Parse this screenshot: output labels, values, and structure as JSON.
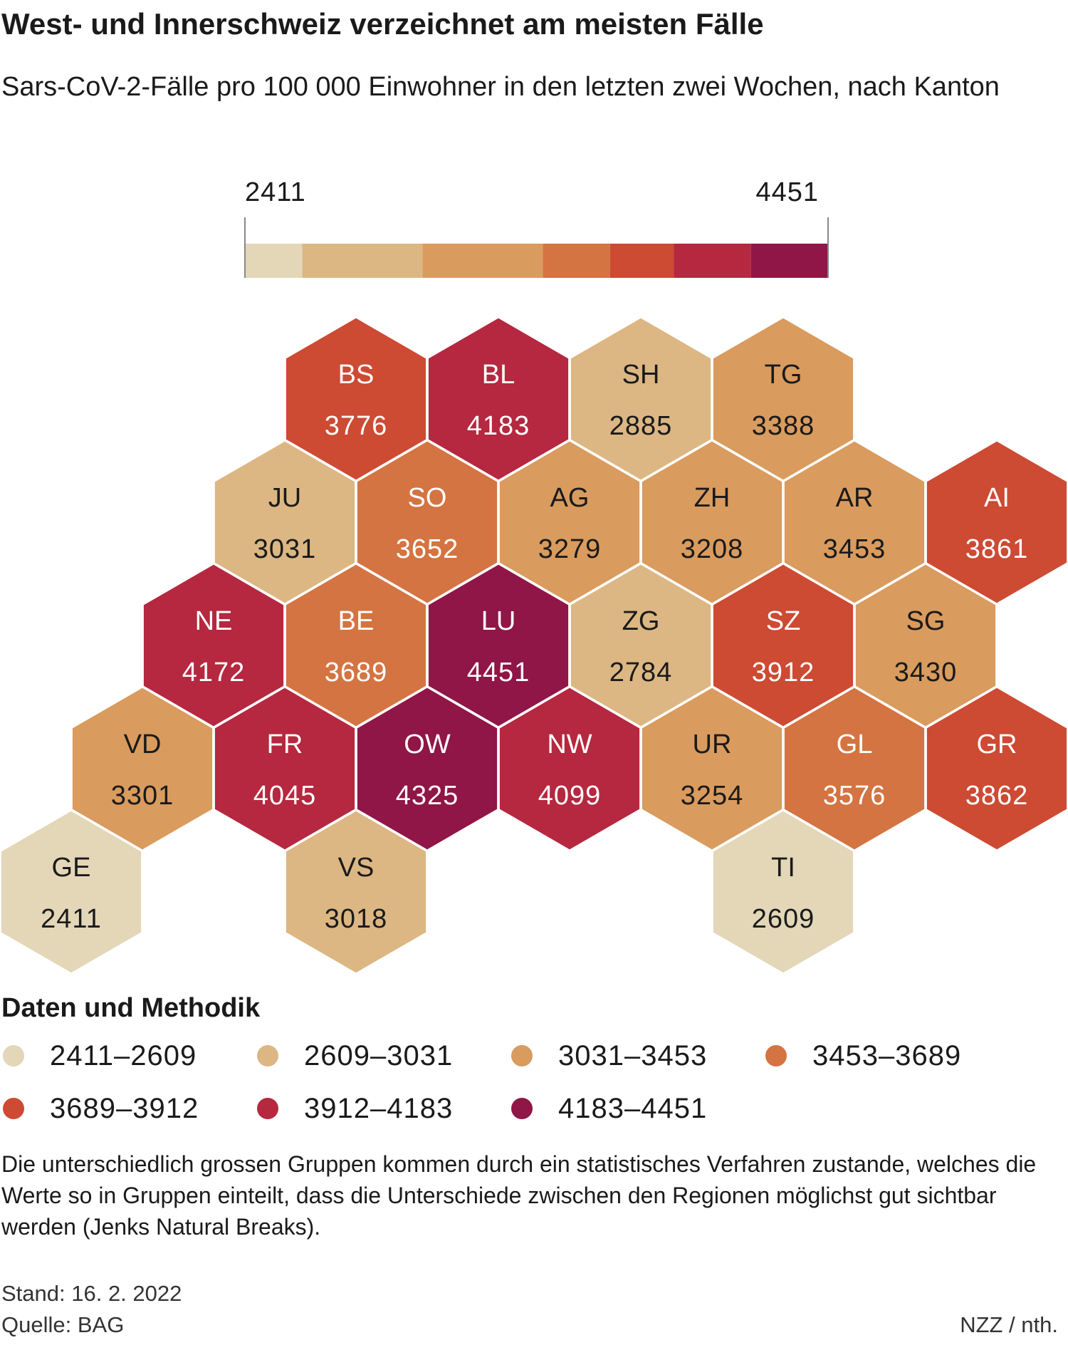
{
  "header": {
    "title": "West- und Innerschweiz verzeichnet am meisten Fälle",
    "subtitle": "Sars-CoV-2-Fälle pro 100 000 Einwohner in den letzten zwei Wochen, nach Kanton"
  },
  "scale": {
    "min_label": "2411",
    "max_label": "4451",
    "min": 2411,
    "max": 4451
  },
  "chart_data": {
    "type": "hexbin-map",
    "title": "West- und Innerschweiz verzeichnet am meisten Fälle",
    "subtitle": "Sars-CoV-2-Fälle pro 100 000 Einwohner in den letzten zwei Wochen, nach Kanton",
    "scale_range": [
      2411,
      4451
    ],
    "bins": [
      {
        "label": "2411–2609",
        "min": 2411,
        "max": 2609,
        "color": "#e3d7b8"
      },
      {
        "label": "2609–3031",
        "min": 2609,
        "max": 3031,
        "color": "#dcb783"
      },
      {
        "label": "3031–3453",
        "min": 3031,
        "max": 3453,
        "color": "#d99b5e"
      },
      {
        "label": "3453–3689",
        "min": 3453,
        "max": 3689,
        "color": "#d47442"
      },
      {
        "label": "3689–3912",
        "min": 3689,
        "max": 3912,
        "color": "#cd4a33"
      },
      {
        "label": "3912–4183",
        "min": 3912,
        "max": 4183,
        "color": "#b5283f"
      },
      {
        "label": "4183–4451",
        "min": 4183,
        "max": 4451,
        "color": "#8f1646"
      }
    ],
    "cantons": [
      {
        "code": "BS",
        "value": 3776,
        "row": 0,
        "col": 2
      },
      {
        "code": "BL",
        "value": 4183,
        "row": 0,
        "col": 3
      },
      {
        "code": "SH",
        "value": 2885,
        "row": 0,
        "col": 4
      },
      {
        "code": "TG",
        "value": 3388,
        "row": 0,
        "col": 5
      },
      {
        "code": "JU",
        "value": 3031,
        "row": 1,
        "col": 2
      },
      {
        "code": "SO",
        "value": 3652,
        "row": 1,
        "col": 3
      },
      {
        "code": "AG",
        "value": 3279,
        "row": 1,
        "col": 4
      },
      {
        "code": "ZH",
        "value": 3208,
        "row": 1,
        "col": 5
      },
      {
        "code": "AR",
        "value": 3453,
        "row": 1,
        "col": 6
      },
      {
        "code": "AI",
        "value": 3861,
        "row": 1,
        "col": 7
      },
      {
        "code": "NE",
        "value": 4172,
        "row": 2,
        "col": 1
      },
      {
        "code": "BE",
        "value": 3689,
        "row": 2,
        "col": 2
      },
      {
        "code": "LU",
        "value": 4451,
        "row": 2,
        "col": 3
      },
      {
        "code": "ZG",
        "value": 2784,
        "row": 2,
        "col": 4
      },
      {
        "code": "SZ",
        "value": 3912,
        "row": 2,
        "col": 5
      },
      {
        "code": "SG",
        "value": 3430,
        "row": 2,
        "col": 6
      },
      {
        "code": "VD",
        "value": 3301,
        "row": 3,
        "col": 1
      },
      {
        "code": "FR",
        "value": 4045,
        "row": 3,
        "col": 2
      },
      {
        "code": "OW",
        "value": 4325,
        "row": 3,
        "col": 3
      },
      {
        "code": "NW",
        "value": 4099,
        "row": 3,
        "col": 4
      },
      {
        "code": "UR",
        "value": 3254,
        "row": 3,
        "col": 5
      },
      {
        "code": "GL",
        "value": 3576,
        "row": 3,
        "col": 6
      },
      {
        "code": "GR",
        "value": 3862,
        "row": 3,
        "col": 7
      },
      {
        "code": "GE",
        "value": 2411,
        "row": 4,
        "col": 0
      },
      {
        "code": "VS",
        "value": 3018,
        "row": 4,
        "col": 2
      },
      {
        "code": "TI",
        "value": 2609,
        "row": 4,
        "col": 5
      }
    ]
  },
  "methods": {
    "heading": "Daten und Methodik",
    "note": "Die unterschiedlich grossen Gruppen kommen durch ein statistisches Verfahren zustande, welches die Werte so in Gruppen einteilt, dass die Unterschiede zwischen den Regionen möglichst gut sichtbar werden (Jenks Natural Breaks)."
  },
  "footer": {
    "stand": "Stand: 16. 2. 2022",
    "source": "Quelle: BAG",
    "credit": "NZZ / nth."
  }
}
